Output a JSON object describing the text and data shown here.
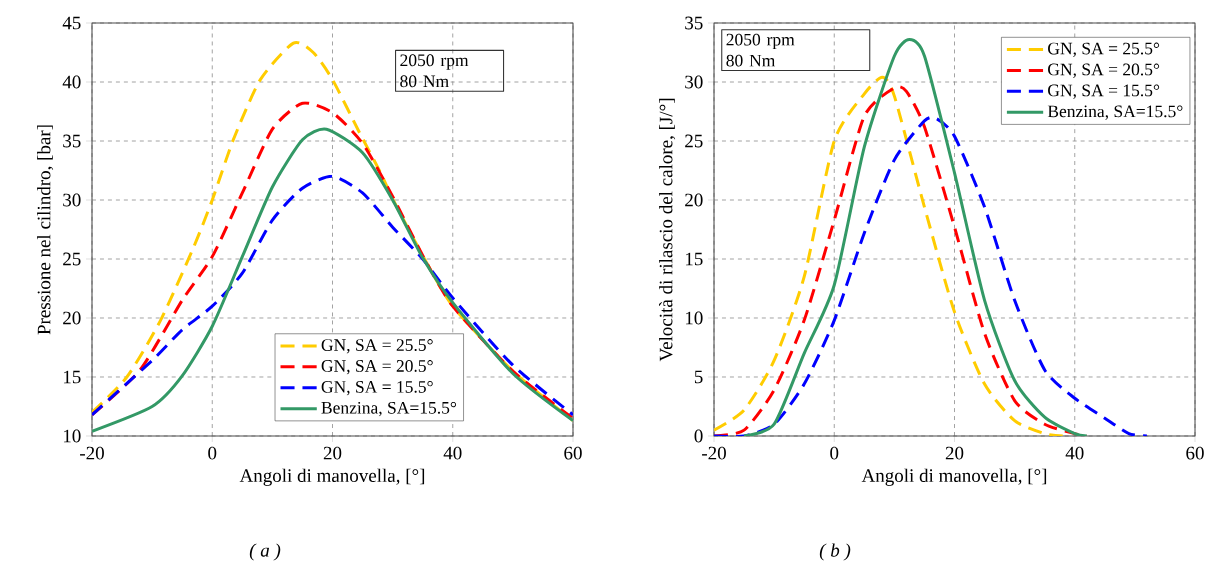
{
  "chart_data": [
    {
      "type": "line",
      "xlabel": "Angoli di manovella, [°]",
      "ylabel": "Pressione nel cilindro, [bar]",
      "xlim": [
        -20,
        60
      ],
      "ylim": [
        10,
        45
      ],
      "xticks": [
        -20,
        0,
        20,
        40,
        60
      ],
      "yticks": [
        10,
        15,
        20,
        25,
        30,
        35,
        40,
        45
      ],
      "grid": true,
      "legend": "bottom right",
      "annotations": [
        "2050 rpm",
        "80 Nm",
        "( a )"
      ],
      "series": [
        {
          "name": "GN, SA = 25.5°",
          "color": "#ffcc00",
          "line_style": "dashed",
          "x": [
            -20,
            -14.2,
            -8.6,
            -3.1,
            0,
            3.5,
            8,
            13.5,
            16.8,
            20,
            24.5,
            28,
            30.1,
            35.1,
            40,
            50,
            60
          ],
          "values": [
            12.0,
            15.0,
            19.8,
            26.0,
            30.0,
            35.1,
            40.2,
            43.3,
            42.5,
            40.2,
            35.7,
            32.3,
            30.0,
            25.2,
            21.0,
            15.5,
            11.3
          ]
        },
        {
          "name": "GN, SA = 20.5°",
          "color": "#ff0000",
          "line_style": "dashed",
          "x": [
            -20,
            -12,
            -5,
            0,
            5,
            10,
            15,
            20,
            25,
            30,
            35,
            40,
            50,
            60
          ],
          "values": [
            11.8,
            15.6,
            21.5,
            25.2,
            30.6,
            36.0,
            38.2,
            37.4,
            34.8,
            30.3,
            25.3,
            21.0,
            15.5,
            11.5
          ]
        },
        {
          "name": "GN, SA = 15.5°",
          "color": "#0000ff",
          "line_style": "dashed",
          "x": [
            -20,
            -10,
            -5,
            0,
            5,
            10,
            15,
            20,
            25,
            30,
            35,
            40,
            50,
            60
          ],
          "values": [
            11.8,
            16.4,
            19.0,
            21.0,
            23.8,
            28.3,
            31.0,
            32.0,
            30.6,
            27.7,
            25.0,
            21.7,
            16.0,
            11.8
          ]
        },
        {
          "name": "Benzina, SA=15.5°",
          "color": "#339966",
          "line_style": "solid",
          "x": [
            -20,
            -10,
            -5,
            0,
            5,
            10,
            15,
            19,
            25,
            30,
            35,
            40,
            50,
            60
          ],
          "values": [
            10.4,
            12.5,
            15.1,
            19.3,
            25.2,
            31.1,
            35.1,
            36.0,
            34.0,
            30.0,
            25.1,
            21.3,
            15.3,
            11.3
          ]
        }
      ]
    },
    {
      "type": "line",
      "xlabel": "Angoli di manovella, [°]",
      "ylabel": "Velocità di rilascio del calore, [J/°]",
      "xlim": [
        -20,
        60
      ],
      "ylim": [
        0,
        35
      ],
      "xticks": [
        -20,
        0,
        20,
        40,
        60
      ],
      "yticks": [
        0,
        5,
        10,
        15,
        20,
        25,
        30,
        35
      ],
      "grid": true,
      "legend": "top right",
      "annotations": [
        "2050 rpm",
        "80 Nm",
        "( b )"
      ],
      "series": [
        {
          "name": "GN, SA = 25.5°",
          "color": "#ffcc00",
          "line_style": "dashed",
          "x": [
            -20,
            -15,
            -10,
            -5,
            0,
            5,
            8,
            10,
            15,
            20,
            25,
            30,
            35,
            38
          ],
          "values": [
            0.5,
            2.2,
            6.4,
            13.5,
            25.0,
            29.0,
            30.4,
            28.8,
            19.4,
            10.5,
            4.4,
            1.3,
            0.2,
            0
          ]
        },
        {
          "name": "GN, SA = 20.5°",
          "color": "#ff0000",
          "line_style": "dashed",
          "x": [
            -20,
            -15,
            -10,
            -5,
            0,
            5,
            10,
            12,
            15,
            20,
            25,
            30,
            35,
            40,
            42
          ],
          "values": [
            0,
            0.5,
            3.9,
            9.8,
            18.3,
            27.1,
            29.5,
            29.2,
            26.2,
            17.7,
            8.7,
            3.0,
            1.0,
            0.2,
            0
          ]
        },
        {
          "name": "GN, SA = 15.5°",
          "color": "#0000ff",
          "line_style": "dashed",
          "x": [
            -20,
            -15,
            -10,
            -5,
            0,
            5,
            10,
            15,
            17,
            20,
            25,
            30,
            35,
            40,
            45,
            49,
            52
          ],
          "values": [
            0,
            0,
            1.0,
            4.4,
            9.8,
            17.2,
            23.4,
            26.7,
            26.9,
            25.4,
            19.4,
            11.5,
            5.6,
            3.2,
            1.5,
            0.2,
            0
          ]
        },
        {
          "name": "Benzina, SA=15.5°",
          "color": "#339966",
          "line_style": "solid",
          "x": [
            -15,
            -10,
            -5,
            0,
            5,
            10,
            12.5,
            15,
            20,
            25,
            30,
            35,
            40,
            42
          ],
          "values": [
            0,
            1.0,
            7.0,
            12.8,
            24.5,
            32.2,
            33.6,
            32.2,
            22.3,
            11.5,
            4.7,
            1.6,
            0.2,
            0
          ]
        }
      ]
    }
  ]
}
